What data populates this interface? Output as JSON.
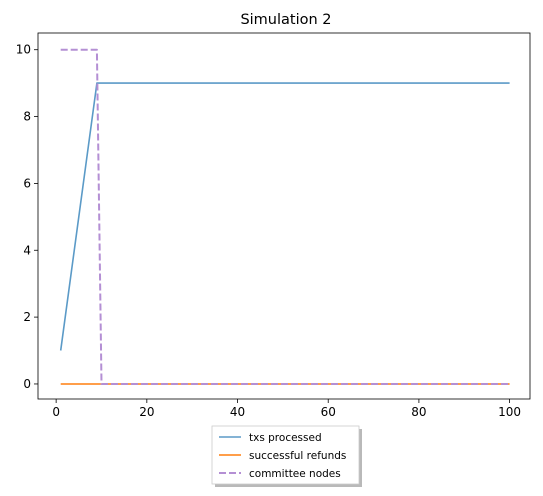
{
  "chart_data": {
    "type": "line",
    "title": "Simulation 2",
    "xlabel": "",
    "ylabel": "",
    "xlim": [
      -4,
      104.5
    ],
    "ylim": [
      -0.45,
      10.5
    ],
    "xticks": [
      0,
      20,
      40,
      60,
      80,
      100
    ],
    "yticks": [
      0,
      2,
      4,
      6,
      8,
      10
    ],
    "grid": false,
    "legend_position": "bottom-center",
    "series": [
      {
        "name": "txs processed",
        "color": "#5b9ac7",
        "style": "solid",
        "points": [
          [
            1,
            1
          ],
          [
            9,
            9
          ],
          [
            100,
            9
          ]
        ]
      },
      {
        "name": "successful refunds",
        "color": "#ff7f0e",
        "style": "solid",
        "points": [
          [
            1,
            0
          ],
          [
            100,
            0
          ]
        ]
      },
      {
        "name": "committee nodes",
        "color": "#b48fd4",
        "style": "dashed",
        "points": [
          [
            1,
            10
          ],
          [
            9,
            10
          ],
          [
            10,
            0
          ],
          [
            100,
            0
          ]
        ]
      }
    ]
  }
}
